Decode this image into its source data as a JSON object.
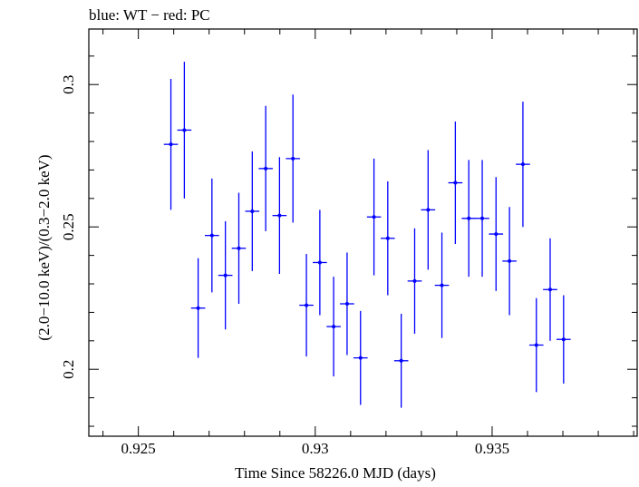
{
  "chart_data": {
    "type": "scatter",
    "title": "blue: WT − red: PC",
    "xlabel": "Time Since 58226.0 MJD (days)",
    "ylabel": "(2.0−10.0 keV)/(0.3−2.0 keV)",
    "xlim": [
      0.9236,
      0.9391
    ],
    "ylim": [
      0.1765,
      0.3195
    ],
    "x_ticks": [
      0.925,
      0.93,
      0.935
    ],
    "x_tick_labels": [
      "0.925",
      "0.93",
      "0.935"
    ],
    "y_ticks": [
      0.2,
      0.25,
      0.3
    ],
    "y_tick_labels": [
      "0.2",
      "0.25",
      "0.3"
    ],
    "grid": false,
    "colors": {
      "series": "#0000ff",
      "axes": "#000000"
    },
    "series": [
      {
        "color": "#0000ff",
        "points": [
          {
            "x": 0.92592,
            "xerr": 0.0002,
            "y": 0.279,
            "yerr": 0.023
          },
          {
            "x": 0.9263,
            "xerr": 0.0002,
            "y": 0.284,
            "yerr": 0.024
          },
          {
            "x": 0.92669,
            "xerr": 0.0002,
            "y": 0.2215,
            "yerr": 0.0175
          },
          {
            "x": 0.92708,
            "xerr": 0.0002,
            "y": 0.247,
            "yerr": 0.02
          },
          {
            "x": 0.92746,
            "xerr": 0.0002,
            "y": 0.233,
            "yerr": 0.019
          },
          {
            "x": 0.92784,
            "xerr": 0.0002,
            "y": 0.2425,
            "yerr": 0.0195
          },
          {
            "x": 0.92822,
            "xerr": 0.0002,
            "y": 0.2555,
            "yerr": 0.021
          },
          {
            "x": 0.9286,
            "xerr": 0.0002,
            "y": 0.2705,
            "yerr": 0.022
          },
          {
            "x": 0.92899,
            "xerr": 0.0002,
            "y": 0.254,
            "yerr": 0.0205
          },
          {
            "x": 0.92937,
            "xerr": 0.0002,
            "y": 0.274,
            "yerr": 0.0225
          },
          {
            "x": 0.92975,
            "xerr": 0.0002,
            "y": 0.2225,
            "yerr": 0.018
          },
          {
            "x": 0.93013,
            "xerr": 0.0002,
            "y": 0.2375,
            "yerr": 0.0185
          },
          {
            "x": 0.93052,
            "xerr": 0.0002,
            "y": 0.215,
            "yerr": 0.0175
          },
          {
            "x": 0.9309,
            "xerr": 0.0002,
            "y": 0.223,
            "yerr": 0.018
          },
          {
            "x": 0.93128,
            "xerr": 0.0002,
            "y": 0.204,
            "yerr": 0.0165
          },
          {
            "x": 0.93166,
            "xerr": 0.0002,
            "y": 0.2535,
            "yerr": 0.0205
          },
          {
            "x": 0.93205,
            "xerr": 0.0002,
            "y": 0.246,
            "yerr": 0.02
          },
          {
            "x": 0.93243,
            "xerr": 0.0002,
            "y": 0.203,
            "yerr": 0.0165
          },
          {
            "x": 0.93281,
            "xerr": 0.0002,
            "y": 0.231,
            "yerr": 0.0185
          },
          {
            "x": 0.93319,
            "xerr": 0.0002,
            "y": 0.256,
            "yerr": 0.021
          },
          {
            "x": 0.93358,
            "xerr": 0.0002,
            "y": 0.2295,
            "yerr": 0.0185
          },
          {
            "x": 0.93396,
            "xerr": 0.0002,
            "y": 0.2655,
            "yerr": 0.0215
          },
          {
            "x": 0.93434,
            "xerr": 0.0002,
            "y": 0.253,
            "yerr": 0.0205
          },
          {
            "x": 0.93472,
            "xerr": 0.0002,
            "y": 0.253,
            "yerr": 0.0205
          },
          {
            "x": 0.93511,
            "xerr": 0.0002,
            "y": 0.2475,
            "yerr": 0.02
          },
          {
            "x": 0.93549,
            "xerr": 0.0002,
            "y": 0.238,
            "yerr": 0.019
          },
          {
            "x": 0.93587,
            "xerr": 0.0002,
            "y": 0.272,
            "yerr": 0.022
          },
          {
            "x": 0.93625,
            "xerr": 0.0002,
            "y": 0.2085,
            "yerr": 0.0165
          },
          {
            "x": 0.93664,
            "xerr": 0.0002,
            "y": 0.228,
            "yerr": 0.018
          },
          {
            "x": 0.93702,
            "xerr": 0.0002,
            "y": 0.2105,
            "yerr": 0.0155
          }
        ]
      }
    ]
  }
}
